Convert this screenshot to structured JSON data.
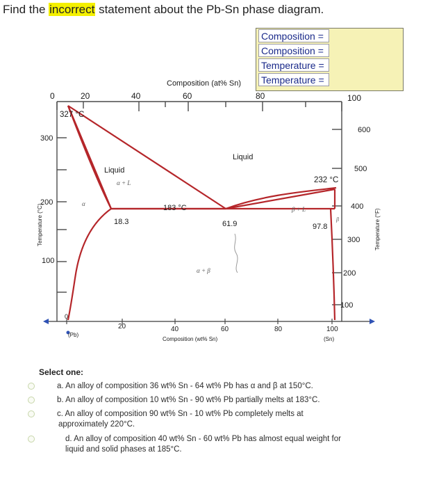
{
  "question": {
    "before": "Find the ",
    "highlight": "incorrect",
    "after": " statement about the Pb-Sn phase diagram."
  },
  "answer_fields": [
    {
      "label": "Composition ="
    },
    {
      "label": "Composition ="
    },
    {
      "label": "Temperature ="
    },
    {
      "label": "Temperature ="
    }
  ],
  "diagram": {
    "top_axis_title": "Composition (at% Sn)",
    "top_ticks": [
      "0",
      "20",
      "40",
      "60",
      "80",
      "100"
    ],
    "bottom_axis_title": "Composition (wt% Sn)",
    "bottom_ticks": [
      "0",
      "20",
      "40",
      "60",
      "80",
      "100"
    ],
    "left_axis_title": "Temperature (°C)",
    "left_ticks": [
      "300",
      "200",
      "100"
    ],
    "right_axis_title": "Temperature (°F)",
    "right_ticks": [
      "600",
      "500",
      "400",
      "300",
      "200",
      "100"
    ],
    "pb_label": "(Pb)",
    "sn_label": "(Sn)",
    "melt_pb": "327 °C",
    "melt_sn": "232 °C",
    "eutectic_temp": "183 °C",
    "eutectic_comp": "61.9",
    "alpha_solubility": "18.3",
    "beta_solubility": "97.8",
    "region_liquid_top": "Liquid",
    "region_liquid_left": "Liquid",
    "region_alpha_l": "α + L",
    "region_beta_l": "β + L",
    "region_alpha": "α",
    "region_beta": "β",
    "region_alpha_beta": "α + β"
  },
  "select_label": "Select one:",
  "options": [
    {
      "letter": "a.",
      "text": "An alloy of composition 36 wt% Sn - 64 wt% Pb has α and β at 150°C."
    },
    {
      "letter": "b.",
      "text": "An alloy of composition 10 wt% Sn - 90 wt% Pb partially melts at 183°C."
    },
    {
      "letter": "c.",
      "text": "An alloy of composition 90 wt% Sn - 10 wt% Pb completely melts at",
      "text2": "approximately 220°C."
    },
    {
      "letter": "d.",
      "text": "An alloy of composition 40 wt% Sn - 60 wt% Pb has almost equal weight for",
      "text2": "liquid and solid phases at 185°C."
    }
  ],
  "colors": {
    "highlight": "#f4f000",
    "phase_line": "#b5262a",
    "axis": "#3f3f3f",
    "answer_box": "#f6f2b6",
    "axis_arrow": "#2f52b5"
  }
}
